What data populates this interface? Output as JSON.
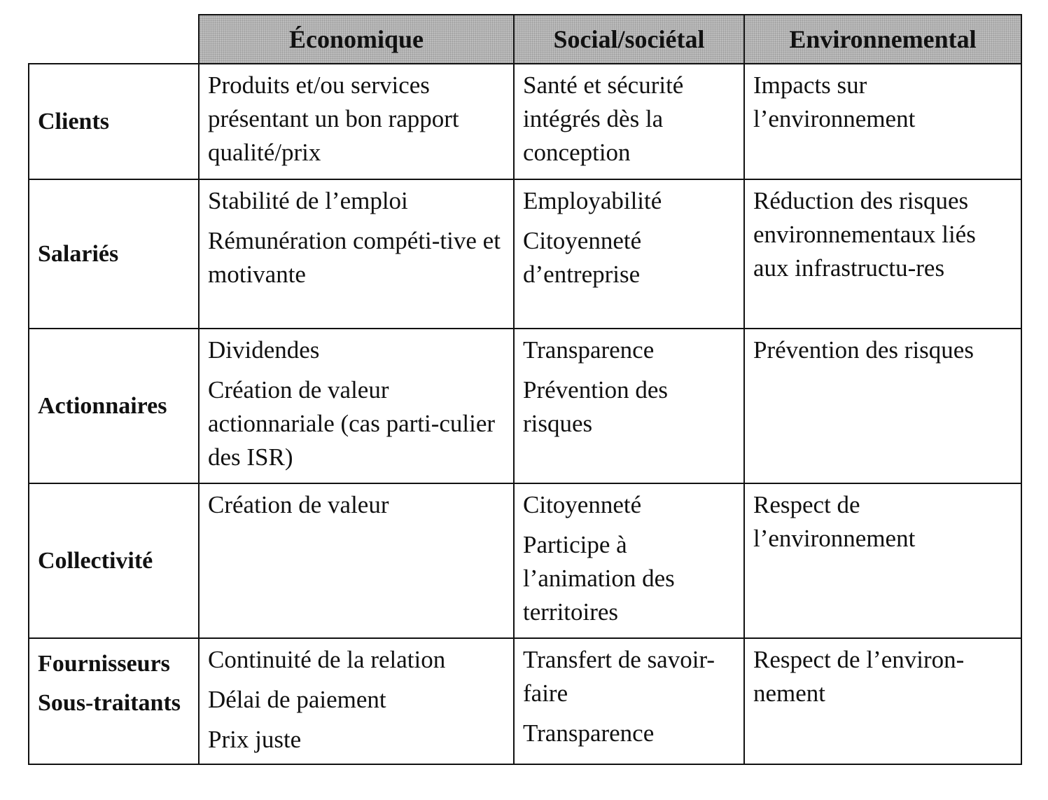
{
  "columns": [
    "Économique",
    "Social/sociétal",
    "Environnemental"
  ],
  "rows": [
    {
      "label": [
        "Clients"
      ],
      "economique": [
        "Produits et/ou services présentant un bon rapport qualité/prix"
      ],
      "social": [
        "Santé et sécurité intégrés dès la conception"
      ],
      "environnemental": [
        "Impacts sur l’environnement"
      ]
    },
    {
      "label": [
        "Salariés"
      ],
      "economique": [
        "Stabilité de l’emploi",
        "Rémunération compéti-tive et motivante"
      ],
      "social": [
        "Employabilité",
        "Citoyenneté d’entreprise"
      ],
      "environnemental": [
        "Réduction des risques environnementaux liés aux infrastructu-res"
      ]
    },
    {
      "label": [
        "Actionnaires"
      ],
      "economique": [
        "Dividendes",
        "Création de valeur actionnariale (cas parti-culier des ISR)"
      ],
      "social": [
        "Transparence",
        "Prévention des risques"
      ],
      "environnemental": [
        "Prévention des risques"
      ]
    },
    {
      "label": [
        "Collectivité"
      ],
      "economique": [
        "Création de valeur"
      ],
      "social": [
        "Citoyenneté",
        "Participe à l’animation des territoires"
      ],
      "environnemental": [
        "Respect de l’environnement"
      ]
    },
    {
      "label": [
        "Fournisseurs",
        "Sous-traitants"
      ],
      "economique": [
        "Continuité de la relation",
        "Délai de paiement",
        "Prix juste"
      ],
      "social": [
        "Transfert de savoir-faire",
        "Transparence"
      ],
      "environnemental": [
        "Respect de l’environ-nement"
      ]
    }
  ]
}
